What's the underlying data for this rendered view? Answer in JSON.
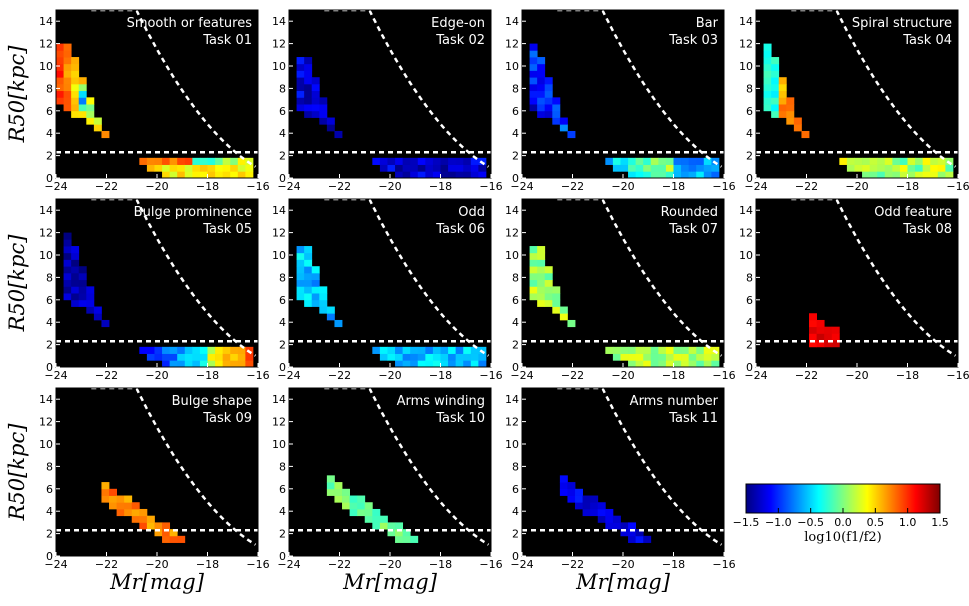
{
  "chart_data": {
    "type": "heatmap",
    "axes": {
      "xlim": [
        -24,
        -16
      ],
      "ylim": [
        0,
        15
      ],
      "xticks": [
        "−24",
        "−22",
        "−20",
        "−18",
        "−16"
      ],
      "yticks": [
        "0",
        "2",
        "4",
        "6",
        "8",
        "10",
        "12",
        "14"
      ],
      "ylabel": "R50[kpc]",
      "xlabel": "Mr[mag]",
      "hline_y": 2.3,
      "background": "#000000"
    },
    "panels": [
      {
        "title": "Smooth or features",
        "task": "Task 01",
        "mode": "smooth",
        "level": 0
      },
      {
        "title": "Edge-on",
        "task": "Task 02",
        "mode": "uniform",
        "level": -1.25
      },
      {
        "title": "Bar",
        "task": "Task 03",
        "mode": "bar",
        "level": -0.7
      },
      {
        "title": "Spiral structure",
        "task": "Task 04",
        "mode": "spiral",
        "level": 0.9
      },
      {
        "title": "Bulge prominence",
        "task": "Task 05",
        "mode": "bulge",
        "level": -1.2
      },
      {
        "title": "Odd",
        "task": "Task 06",
        "mode": "uniform",
        "level": -0.55
      },
      {
        "title": "Rounded",
        "task": "Task 07",
        "mode": "uniform",
        "level": 0.1
      },
      {
        "title": "Odd feature",
        "task": "Task 08",
        "mode": "odd",
        "level": 1.2
      },
      {
        "title": "Bulge shape",
        "task": "Task 09",
        "mode": "small",
        "level": 0.75
      },
      {
        "title": "Arms winding",
        "task": "Task 10",
        "mode": "small",
        "level": -0.05
      },
      {
        "title": "Arms number",
        "task": "Task 11",
        "mode": "small",
        "level": -1.2
      }
    ],
    "colorbar": {
      "min": -1.5,
      "max": 1.5,
      "ticks": [
        "−1.5",
        "−1.0",
        "−0.5",
        "0.0",
        "0.5",
        "1.0",
        "1.5"
      ],
      "label": "log10(f1/f2)"
    }
  }
}
